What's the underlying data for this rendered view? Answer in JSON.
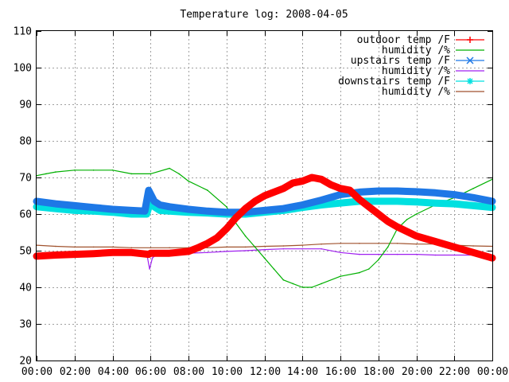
{
  "chart_data": {
    "type": "line",
    "title": "Temperature log: 2008-04-05",
    "xlabel": "",
    "ylabel": "",
    "xlim": [
      0,
      24
    ],
    "ylim": [
      20,
      110
    ],
    "grid": true,
    "legend_position": "top-right",
    "x_ticks": [
      "00:00",
      "02:00",
      "04:00",
      "06:00",
      "08:00",
      "10:00",
      "12:00",
      "14:00",
      "16:00",
      "18:00",
      "20:00",
      "22:00",
      "00:00"
    ],
    "y_ticks": [
      20,
      30,
      40,
      50,
      60,
      70,
      80,
      90,
      100,
      110
    ],
    "series": [
      {
        "name": "outdoor temp /F",
        "color": "#ff0000",
        "marker": "plus",
        "x": [
          0,
          1,
          2,
          3,
          4,
          5,
          5.9,
          6,
          7,
          8,
          8.5,
          9,
          9.5,
          10,
          10.5,
          11,
          11.5,
          12,
          12.5,
          13,
          13.5,
          14,
          14.5,
          15,
          15.5,
          16,
          16.5,
          17,
          17.5,
          18,
          18.5,
          19,
          20,
          21,
          22,
          23,
          24
        ],
        "y": [
          48.5,
          48.8,
          49,
          49.2,
          49.5,
          49.5,
          49,
          49.3,
          49.3,
          49.8,
          50.8,
          52,
          53.5,
          56,
          59,
          61.5,
          63.5,
          65,
          66,
          67,
          68.5,
          69,
          70,
          69.5,
          68,
          67,
          66.5,
          64,
          62,
          60,
          58,
          56.5,
          54,
          52.5,
          51,
          49.5,
          48
        ]
      },
      {
        "name": "humidity /%",
        "color": "#00b000",
        "marker": "none",
        "x": [
          0,
          0.5,
          1,
          2,
          3,
          4,
          5,
          6,
          7,
          7.5,
          8,
          9,
          10,
          10.5,
          11,
          11.5,
          12,
          12.5,
          13,
          13.5,
          14,
          14.5,
          15,
          16,
          17,
          17.5,
          18,
          18.5,
          19,
          19.5,
          20,
          21,
          22,
          23,
          24
        ],
        "y": [
          70.5,
          71,
          71.5,
          72,
          72,
          72,
          71,
          71,
          72.5,
          71,
          69,
          66.5,
          62,
          57.5,
          54,
          51,
          48,
          45,
          42,
          41,
          40,
          40,
          41,
          43,
          44,
          45,
          47.5,
          51,
          56,
          58.5,
          60,
          62.5,
          64.5,
          67,
          69.5
        ]
      },
      {
        "name": "upstairs temp /F",
        "color": "#1e78e6",
        "marker": "cross",
        "x": [
          0,
          1,
          2,
          3,
          4,
          5,
          5.7,
          5.9,
          6.0,
          6.2,
          6.5,
          7,
          8,
          9,
          10,
          11,
          12,
          13,
          14,
          15,
          16,
          17,
          18,
          19,
          20,
          21,
          22,
          23,
          24
        ],
        "y": [
          63.5,
          62.8,
          62.3,
          61.8,
          61.3,
          61,
          60.8,
          66.5,
          65.5,
          63.5,
          62.5,
          62,
          61.3,
          60.8,
          60.5,
          60.5,
          61,
          61.5,
          62.5,
          63.8,
          65.3,
          66,
          66.3,
          66.3,
          66.1,
          65.8,
          65.3,
          64.5,
          63.5
        ]
      },
      {
        "name": "humidity /%",
        "color": "#a020f0",
        "marker": "none",
        "x": [
          0,
          1,
          2,
          3,
          4,
          5,
          5.8,
          5.95,
          6.1,
          6.4,
          7,
          8,
          9,
          10,
          11,
          12,
          13,
          14,
          15,
          16,
          17,
          18,
          19,
          20,
          21,
          22,
          23,
          24
        ],
        "y": [
          49,
          49.3,
          49.5,
          49.5,
          49.5,
          49.3,
          49.2,
          45,
          48,
          49.3,
          49.3,
          49.3,
          49.5,
          49.8,
          50,
          50.3,
          50.5,
          50.5,
          50.5,
          49.5,
          49,
          49,
          49,
          49,
          48.8,
          48.8,
          48.8,
          48.5
        ]
      },
      {
        "name": "downstairs temp /F",
        "color": "#00e0e0",
        "marker": "star",
        "x": [
          0,
          1,
          2,
          3,
          4,
          5,
          5.8,
          6,
          6.2,
          6.5,
          7,
          8,
          9,
          10,
          11,
          12,
          13,
          14,
          15,
          16,
          17,
          18,
          19,
          20,
          21,
          22,
          23,
          24
        ],
        "y": [
          62,
          61.5,
          61,
          60.8,
          60.5,
          60,
          60,
          63.5,
          62,
          61,
          60.8,
          60.5,
          60.3,
          60,
          60,
          60.5,
          61,
          61.8,
          62.5,
          63,
          63.5,
          63.5,
          63.5,
          63.3,
          63,
          62.8,
          62.3,
          61.8
        ]
      },
      {
        "name": "humidity /%",
        "color": "#a0522d",
        "marker": "none",
        "x": [
          0,
          1,
          2,
          3,
          4,
          5,
          6,
          7,
          8,
          9,
          10,
          11,
          12,
          13,
          14,
          15,
          16,
          17,
          18,
          19,
          20,
          21,
          22,
          23,
          24
        ],
        "y": [
          51.5,
          51.2,
          51,
          51,
          51,
          50.8,
          50.8,
          50.8,
          50.8,
          50.8,
          51,
          51,
          51.2,
          51.3,
          51.5,
          51.8,
          52,
          52,
          52,
          52,
          51.8,
          51.8,
          51.5,
          51.3,
          51.2
        ]
      }
    ]
  }
}
